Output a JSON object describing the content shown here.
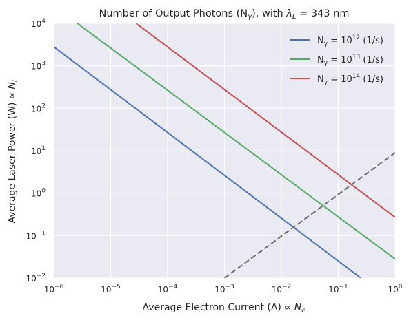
{
  "chart_data": {
    "type": "line",
    "title": "Number of Output Photons (Nγ), with λL = 343 nm",
    "xlabel": "Average Electron Current (A) ∝ Ne",
    "ylabel": "Average Laser Power (W) ∝ NL",
    "xscale": "log",
    "yscale": "log",
    "xlim": [
      1e-06,
      1
    ],
    "ylim": [
      0.01,
      10000
    ],
    "xticks": [
      {
        "value": 1e-06,
        "base": "10",
        "exp": "−6"
      },
      {
        "value": 1e-05,
        "base": "10",
        "exp": "−5"
      },
      {
        "value": 0.0001,
        "base": "10",
        "exp": "−4"
      },
      {
        "value": 0.001,
        "base": "10",
        "exp": "−3"
      },
      {
        "value": 0.01,
        "base": "10",
        "exp": "−2"
      },
      {
        "value": 0.1,
        "base": "10",
        "exp": "−1"
      },
      {
        "value": 1,
        "base": "10",
        "exp": "0"
      }
    ],
    "yticks": [
      {
        "value": 0.01,
        "base": "10",
        "exp": "−2"
      },
      {
        "value": 0.1,
        "base": "10",
        "exp": "−1"
      },
      {
        "value": 1,
        "base": "10",
        "exp": "0"
      },
      {
        "value": 10,
        "base": "10",
        "exp": "1"
      },
      {
        "value": 100,
        "base": "10",
        "exp": "2"
      },
      {
        "value": 1000,
        "base": "10",
        "exp": "3"
      },
      {
        "value": 10000,
        "base": "10",
        "exp": "4"
      }
    ],
    "grid": true,
    "legend_position": "top-right",
    "series": [
      {
        "name": "Nγ = 10^12 (1/s)",
        "legend_prefix": "N",
        "legend_sub": "γ",
        "legend_mid": " = 10",
        "legend_exp": "12",
        "legend_suffix": " (1/s)",
        "color": "#4c72b0",
        "style": "solid",
        "x": [
          1e-06,
          0.25
        ],
        "y": [
          2800,
          0.01
        ]
      },
      {
        "name": "Nγ = 10^13 (1/s)",
        "legend_prefix": "N",
        "legend_sub": "γ",
        "legend_mid": " = 10",
        "legend_exp": "13",
        "legend_suffix": " (1/s)",
        "color": "#55a868",
        "style": "solid",
        "x": [
          2.6e-06,
          1
        ],
        "y": [
          10000,
          0.028
        ]
      },
      {
        "name": "Nγ = 10^14 (1/s)",
        "legend_prefix": "N",
        "legend_sub": "γ",
        "legend_mid": " = 10",
        "legend_exp": "14",
        "legend_suffix": " (1/s)",
        "color": "#c44e52",
        "style": "solid",
        "x": [
          2.8e-05,
          1
        ],
        "y": [
          10000,
          0.27
        ]
      },
      {
        "name": "",
        "color": "#6b6b6b",
        "style": "dashed",
        "x": [
          0.001,
          1
        ],
        "y": [
          0.01,
          9
        ]
      }
    ],
    "colors": {
      "axes_bg": "#eaeaf2",
      "grid": "#ffffff",
      "text": "#262626"
    }
  }
}
